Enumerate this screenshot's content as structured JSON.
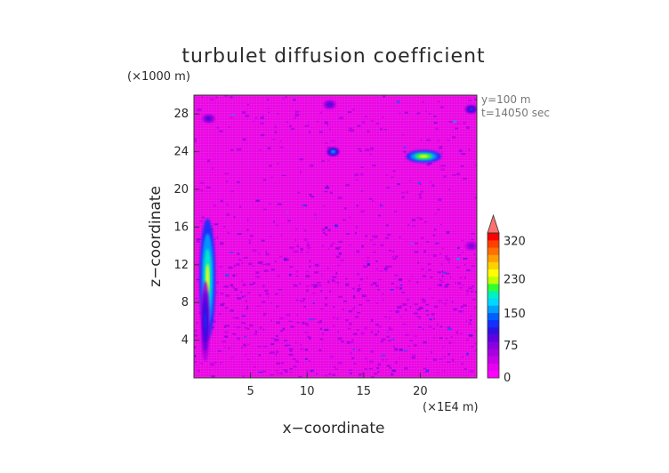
{
  "chart_data": {
    "type": "heatmap",
    "title": "turbulet diffusion coefficient",
    "xlabel": "x−coordinate",
    "ylabel": "z−coordinate",
    "x_unit": "(×1E4 m)",
    "y_unit": "(×1000 m)",
    "xlim": [
      0,
      25
    ],
    "ylim": [
      0,
      30
    ],
    "x_ticks": [
      5,
      10,
      15,
      20
    ],
    "y_ticks": [
      4,
      8,
      12,
      16,
      20,
      24,
      28
    ],
    "annotations": [
      "y=100 m",
      "t=14050 sec"
    ],
    "colorbar": {
      "ticks": [
        "0",
        "75",
        "150",
        "230",
        "320"
      ],
      "tick_values": [
        0,
        75,
        150,
        230,
        320
      ],
      "max": 340,
      "colors": [
        "#ff00ff",
        "#e800f0",
        "#c800e8",
        "#a800e0",
        "#8800e0",
        "#6000e0",
        "#3010e0",
        "#1030ff",
        "#0060ff",
        "#00a0ff",
        "#00d8ff",
        "#00f0c0",
        "#30ff30",
        "#c0ff00",
        "#ffff00",
        "#ffd000",
        "#ffa000",
        "#ff7000",
        "#ff4000",
        "#ff0000"
      ]
    },
    "background_value": 0,
    "features": [
      {
        "x": 1.2,
        "z": 10.5,
        "value": 240
      },
      {
        "x": 1.0,
        "z": 6.0,
        "value": 130
      },
      {
        "x": 20.3,
        "z": 23.5,
        "value": 250
      },
      {
        "x": 12.3,
        "z": 24.0,
        "value": 170
      },
      {
        "x": 1.3,
        "z": 27.5,
        "value": 110
      },
      {
        "x": 24.5,
        "z": 28.5,
        "value": 140
      },
      {
        "x": 24.5,
        "z": 14.0,
        "value": 90
      },
      {
        "x": 12.0,
        "z": 29.0,
        "value": 120
      }
    ]
  }
}
